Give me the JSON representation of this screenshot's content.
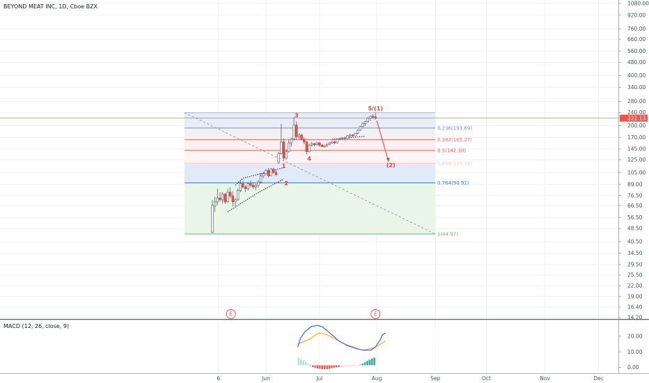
{
  "header": {
    "title": "BEYOND MEAT INC, 1D, Cboe BZX"
  },
  "macd": {
    "title": "MACD (12, 26, close, 9)",
    "ticks": [
      {
        "label": "20.00",
        "v": 20
      },
      {
        "label": "10.00",
        "v": 10
      },
      {
        "label": "0.00",
        "v": 0
      }
    ],
    "macd_line": [
      {
        "t": 0,
        "v": 13
      },
      {
        "t": 2,
        "v": 19
      },
      {
        "t": 5,
        "v": 23
      },
      {
        "t": 9,
        "v": 26
      },
      {
        "t": 13,
        "v": 27
      },
      {
        "t": 17,
        "v": 26
      },
      {
        "t": 22,
        "v": 22
      },
      {
        "t": 28,
        "v": 17
      },
      {
        "t": 34,
        "v": 14
      },
      {
        "t": 40,
        "v": 12
      },
      {
        "t": 45,
        "v": 11
      },
      {
        "t": 50,
        "v": 11
      },
      {
        "t": 53,
        "v": 13
      },
      {
        "t": 56,
        "v": 17
      },
      {
        "t": 58,
        "v": 21
      },
      {
        "t": 60,
        "v": 22
      }
    ],
    "signal_line": [
      {
        "t": 0,
        "v": 15
      },
      {
        "t": 8,
        "v": 18
      },
      {
        "t": 14,
        "v": 22
      },
      {
        "t": 20,
        "v": 21
      },
      {
        "t": 26,
        "v": 18
      },
      {
        "t": 32,
        "v": 15
      },
      {
        "t": 38,
        "v": 13
      },
      {
        "t": 44,
        "v": 11
      },
      {
        "t": 50,
        "v": 12
      },
      {
        "t": 55,
        "v": 14
      },
      {
        "t": 60,
        "v": 17
      }
    ],
    "histogram": [
      2.6,
      2.1,
      1.7,
      1.1,
      0.6,
      -0.2,
      -0.6,
      -0.9,
      -1.1,
      -1.2,
      -1.3,
      -1.35,
      -1.3,
      -1.2,
      -1.0,
      -0.8,
      -0.7,
      -0.6,
      -0.55,
      -0.5,
      -0.5,
      -0.45,
      -0.4,
      -0.3,
      -0.25,
      -0.2,
      0.2,
      0.6,
      1.0,
      1.5,
      1.9,
      2.3,
      2.6
    ]
  },
  "events": [
    {
      "t": 1,
      "label": "E"
    },
    {
      "t": 64,
      "label": "E"
    }
  ],
  "fib": {
    "levels": [
      {
        "ratio": 0.236,
        "value": 193.69,
        "label": "0.236(193.69)",
        "color": "#7e8ec8",
        "band": "#e8ecf9"
      },
      {
        "ratio": 0.382,
        "value": 165.27,
        "label": "0.382(165.27)",
        "color": "#e57373",
        "band": "#f1f1f3"
      },
      {
        "ratio": 0.5,
        "value": 142.3,
        "label": "0.5(142.30)",
        "color": "#ef5350",
        "band": "#fdeef0"
      },
      {
        "ratio": 0.618,
        "value": 119.33,
        "label": "0.618(119.33)",
        "color": "#f3cbcb",
        "band": "#fdf4f3"
      },
      {
        "ratio": 0.764,
        "value": 90.91,
        "label": "0.764(90.91)",
        "color": "#3d73c8",
        "band": "#e0eaf9"
      },
      {
        "ratio": 1,
        "value": 44.97,
        "label": "1(44.97)",
        "color": "#66bb6a",
        "band": "#eaf5ea"
      }
    ],
    "top_value": 239.6
  },
  "waves": [
    {
      "label": "1",
      "t": 28,
      "v": 112
    },
    {
      "label": "2",
      "t": 29,
      "v": 88
    },
    {
      "label": "3",
      "t": 33,
      "v": 225
    },
    {
      "label": "4",
      "t": 38,
      "v": 124
    },
    {
      "label": "5/(1)",
      "t": 64,
      "v": 247
    },
    {
      "label": "(2)",
      "t": 70,
      "v": 113
    }
  ],
  "chart_data": {
    "type": "candlestick",
    "title": "BEYOND MEAT INC, 1D, Cboe BZX",
    "yscale": "log",
    "ylim": [
      14.2,
      1080
    ],
    "y_ticks": [
      1080,
      920,
      760,
      660,
      560,
      480,
      400,
      340,
      280,
      240,
      200,
      170,
      145,
      125,
      105,
      89,
      76.5,
      66.5,
      56.5,
      48.5,
      40.5,
      34.5,
      29.5,
      25.5,
      22,
      19,
      16.4,
      14.2
    ],
    "y_tick_labels": [
      "1080.00",
      "920.00",
      "760.00",
      "660.00",
      "560.00",
      "480.00",
      "400.00",
      "340.00",
      "280.00",
      "240.00",
      "200.00",
      "170.00",
      "145.00",
      "125.00",
      "105.00",
      "89.00",
      "76.50",
      "66.50",
      "56.50",
      "48.50",
      "40.50",
      "34.50",
      "29.50",
      "25.50",
      "22.00",
      "19.00",
      "16.40",
      "14.20"
    ],
    "x_ticks": [
      "6",
      "Jun",
      "Jul",
      "Aug",
      "Sep",
      "Oct",
      "Nov",
      "Dec"
    ],
    "last_price": {
      "label": "222.13",
      "value": 222.13
    },
    "candles": [
      {
        "o": 46,
        "h": 72,
        "l": 45.5,
        "c": 66.8
      },
      {
        "o": 66,
        "h": 75,
        "l": 61,
        "c": 70
      },
      {
        "o": 70,
        "h": 84,
        "l": 67,
        "c": 74
      },
      {
        "o": 74,
        "h": 80,
        "l": 70,
        "c": 72
      },
      {
        "o": 72,
        "h": 80,
        "l": 68,
        "c": 78
      },
      {
        "o": 78,
        "h": 79,
        "l": 68,
        "c": 70
      },
      {
        "o": 70,
        "h": 84,
        "l": 69,
        "c": 80
      },
      {
        "o": 80,
        "h": 86,
        "l": 74,
        "c": 76
      },
      {
        "o": 76,
        "h": 81,
        "l": 66,
        "c": 70
      },
      {
        "o": 70,
        "h": 74,
        "l": 65,
        "c": 72
      },
      {
        "o": 72,
        "h": 84,
        "l": 71,
        "c": 82
      },
      {
        "o": 82,
        "h": 94,
        "l": 80,
        "c": 90
      },
      {
        "o": 90,
        "h": 93,
        "l": 84,
        "c": 86
      },
      {
        "o": 86,
        "h": 88,
        "l": 80,
        "c": 84
      },
      {
        "o": 84,
        "h": 92,
        "l": 82,
        "c": 90
      },
      {
        "o": 90,
        "h": 94,
        "l": 86,
        "c": 88
      },
      {
        "o": 88,
        "h": 92,
        "l": 84,
        "c": 86
      },
      {
        "o": 86,
        "h": 90,
        "l": 82,
        "c": 88
      },
      {
        "o": 88,
        "h": 95,
        "l": 85,
        "c": 92
      },
      {
        "o": 92,
        "h": 104,
        "l": 90,
        "c": 100
      },
      {
        "o": 100,
        "h": 106,
        "l": 97,
        "c": 103
      },
      {
        "o": 103,
        "h": 110,
        "l": 101,
        "c": 108
      },
      {
        "o": 108,
        "h": 112,
        "l": 98,
        "c": 100
      },
      {
        "o": 100,
        "h": 112,
        "l": 100,
        "c": 110
      },
      {
        "o": 110,
        "h": 112,
        "l": 103,
        "c": 105
      },
      {
        "o": 105,
        "h": 108,
        "l": 100,
        "c": 102
      },
      {
        "o": 121,
        "h": 140,
        "l": 118,
        "c": 136
      },
      {
        "o": 136,
        "h": 205,
        "l": 134,
        "c": 160
      },
      {
        "o": 160,
        "h": 168,
        "l": 124,
        "c": 128
      },
      {
        "o": 128,
        "h": 145,
        "l": 125,
        "c": 140
      },
      {
        "o": 140,
        "h": 165,
        "l": 138,
        "c": 158
      },
      {
        "o": 158,
        "h": 170,
        "l": 150,
        "c": 167
      },
      {
        "o": 167,
        "h": 226,
        "l": 162,
        "c": 202
      },
      {
        "o": 202,
        "h": 212,
        "l": 165,
        "c": 172
      },
      {
        "o": 172,
        "h": 180,
        "l": 165,
        "c": 176
      },
      {
        "o": 176,
        "h": 179,
        "l": 163,
        "c": 166
      },
      {
        "o": 166,
        "h": 170,
        "l": 155,
        "c": 160
      },
      {
        "o": 160,
        "h": 162,
        "l": 135,
        "c": 140
      },
      {
        "o": 140,
        "h": 156,
        "l": 138,
        "c": 153
      },
      {
        "o": 153,
        "h": 160,
        "l": 150,
        "c": 156
      },
      {
        "o": 156,
        "h": 158,
        "l": 151,
        "c": 154
      },
      {
        "o": 154,
        "h": 160,
        "l": 152,
        "c": 158
      },
      {
        "o": 158,
        "h": 160,
        "l": 150,
        "c": 153
      },
      {
        "o": 153,
        "h": 156,
        "l": 149,
        "c": 150
      },
      {
        "o": 150,
        "h": 154,
        "l": 148,
        "c": 152
      },
      {
        "o": 152,
        "h": 157,
        "l": 150,
        "c": 155
      },
      {
        "o": 155,
        "h": 160,
        "l": 153,
        "c": 158
      },
      {
        "o": 158,
        "h": 162,
        "l": 156,
        "c": 160
      },
      {
        "o": 160,
        "h": 163,
        "l": 155,
        "c": 158
      },
      {
        "o": 158,
        "h": 168,
        "l": 157,
        "c": 166
      },
      {
        "o": 166,
        "h": 170,
        "l": 163,
        "c": 168
      },
      {
        "o": 168,
        "h": 171,
        "l": 165,
        "c": 169
      },
      {
        "o": 169,
        "h": 172,
        "l": 166,
        "c": 168
      },
      {
        "o": 168,
        "h": 176,
        "l": 167,
        "c": 174
      },
      {
        "o": 174,
        "h": 178,
        "l": 170,
        "c": 176
      },
      {
        "o": 176,
        "h": 178,
        "l": 172,
        "c": 174
      },
      {
        "o": 174,
        "h": 182,
        "l": 173,
        "c": 180
      },
      {
        "o": 180,
        "h": 190,
        "l": 178,
        "c": 188
      },
      {
        "o": 188,
        "h": 200,
        "l": 186,
        "c": 198
      },
      {
        "o": 198,
        "h": 210,
        "l": 195,
        "c": 206
      },
      {
        "o": 206,
        "h": 214,
        "l": 200,
        "c": 212
      },
      {
        "o": 212,
        "h": 225,
        "l": 210,
        "c": 222
      },
      {
        "o": 222,
        "h": 231,
        "l": 214,
        "c": 228
      },
      {
        "o": 228,
        "h": 234,
        "l": 220,
        "c": 226
      },
      {
        "o": 226,
        "h": 240,
        "l": 218,
        "c": 222
      }
    ]
  },
  "colors": {
    "up": "#26a69a",
    "down": "#ef5350",
    "candle": "#565a65",
    "macd": "#2962ff",
    "signal": "#ff9800",
    "last_price": "#ef5350"
  }
}
